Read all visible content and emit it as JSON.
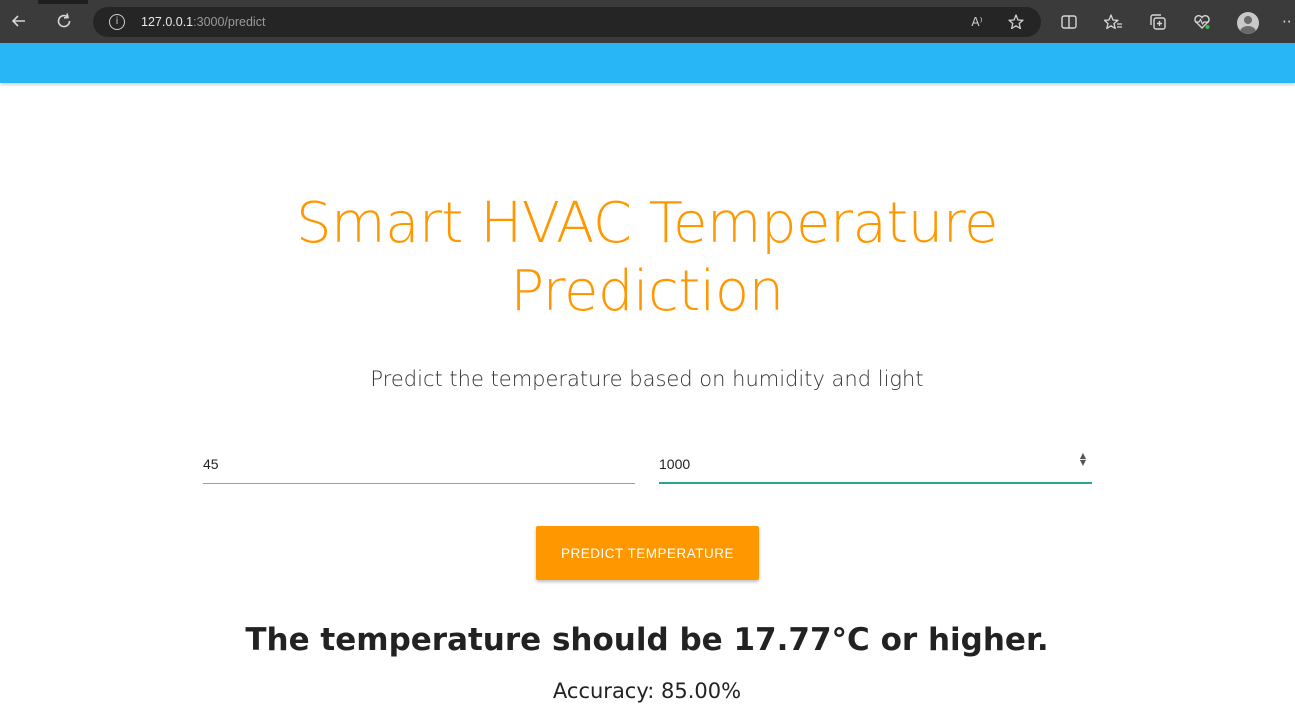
{
  "browser": {
    "url_host": "127.0.0.1",
    "url_path": ":3000/predict",
    "icons": [
      "back-arrow-icon",
      "refresh-icon",
      "info-icon",
      "read-aloud-icon",
      "favorite-star-icon",
      "split-screen-icon",
      "favorites-icon",
      "collections-icon",
      "performance-icon",
      "profile-avatar",
      "more-icon"
    ],
    "read_aloud_glyph": "A⁾",
    "more_glyph": "··"
  },
  "app": {
    "nav_color": "#29b6f6",
    "accent_color": "#ff9800",
    "focus_color": "#26a69a"
  },
  "main": {
    "title": "Smart HVAC Temperature Prediction",
    "subtitle": "Predict the temperature based on humidity and light",
    "humidity_value": "45",
    "light_value": "1000",
    "button_label": "PREDICT TEMPERATURE",
    "result": "The temperature should be 17.77°C or higher.",
    "accuracy": "Accuracy: 85.00%"
  }
}
